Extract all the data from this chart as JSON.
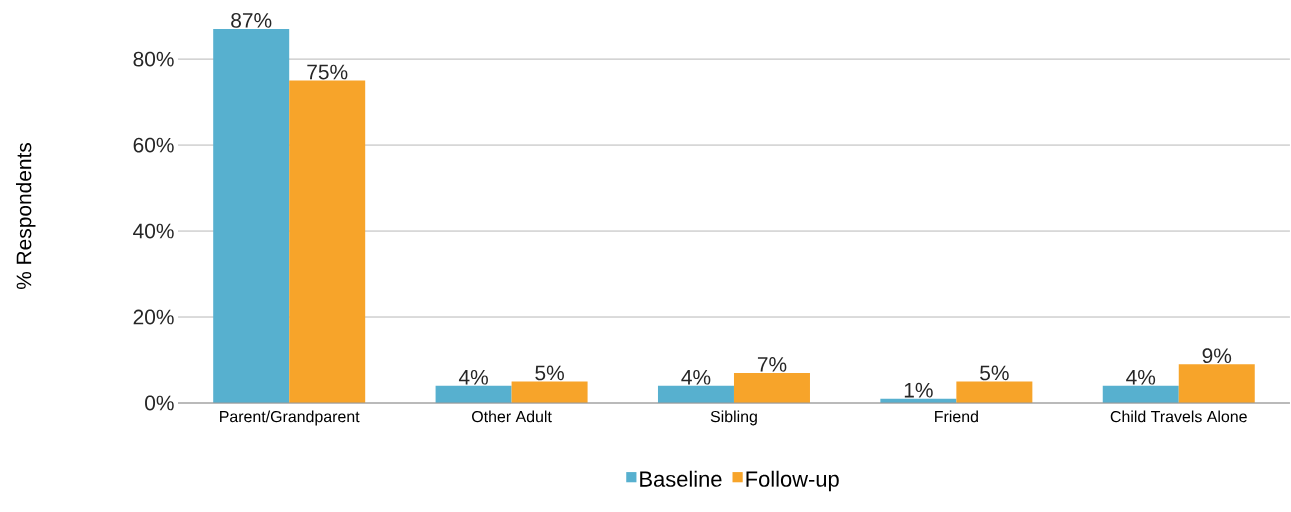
{
  "chart_data": {
    "type": "bar",
    "ylabel": "% Respondents",
    "categories": [
      "Parent/Grandparent",
      "Other Adult",
      "Sibling",
      "Friend",
      "Child Travels Alone"
    ],
    "series": [
      {
        "name": "Baseline",
        "color": "#57b0cf",
        "values": [
          87,
          4,
          4,
          1,
          4
        ],
        "value_labels": [
          "87%",
          "4%",
          "4%",
          "1%",
          "4%"
        ]
      },
      {
        "name": "Follow-up",
        "color": "#f7a42a",
        "values": [
          75,
          5,
          7,
          5,
          9
        ],
        "value_labels": [
          "75%",
          "5%",
          "7%",
          "5%",
          "9%"
        ]
      }
    ],
    "yticks": [
      {
        "value": 0,
        "label": "0%"
      },
      {
        "value": 20,
        "label": "20%"
      },
      {
        "value": 40,
        "label": "40%"
      },
      {
        "value": 60,
        "label": "60%"
      },
      {
        "value": 80,
        "label": "80%"
      }
    ],
    "ylim": [
      0,
      87
    ],
    "grid": "y",
    "legend": "bottom"
  }
}
